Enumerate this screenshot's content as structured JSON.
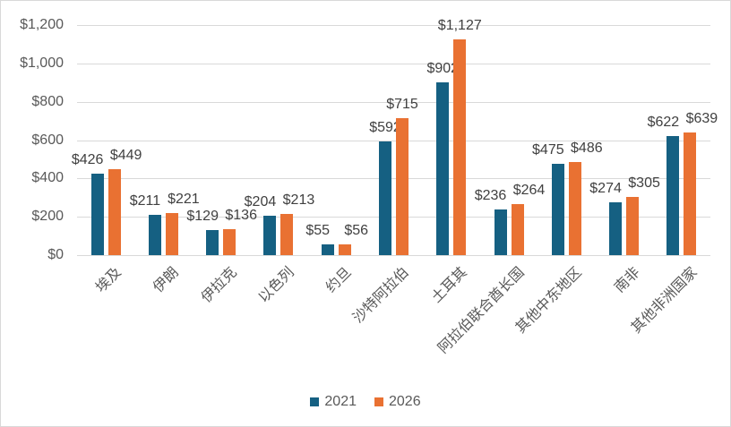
{
  "chart_data": {
    "type": "bar",
    "title": "",
    "categories": [
      "埃及",
      "伊朗",
      "伊拉克",
      "以色列",
      "约旦",
      "沙特阿拉伯",
      "土耳其",
      "阿拉伯联合酋长国",
      "其他中东地区",
      "南非",
      "其他非洲国家"
    ],
    "series": [
      {
        "name": "2021",
        "color": "#156082",
        "values": [
          426,
          211,
          129,
          204,
          55,
          592,
          902,
          236,
          475,
          274,
          622
        ],
        "labels": [
          "$426",
          "$211",
          "$129",
          "$204",
          "$55",
          "$592",
          "$902",
          "$236",
          "$475",
          "$274",
          "$622"
        ]
      },
      {
        "name": "2026",
        "color": "#E97132",
        "values": [
          449,
          221,
          136,
          213,
          56,
          715,
          1127,
          264,
          486,
          305,
          639
        ],
        "labels": [
          "$449",
          "$221",
          "$136",
          "$213",
          "$56",
          "$715",
          "$1,127",
          "$264",
          "$486",
          "$305",
          "$639"
        ]
      }
    ],
    "y_axis": {
      "min": 0,
      "max": 1200,
      "tick_step": 200,
      "tick_labels": [
        "$0",
        "$200",
        "$400",
        "$600",
        "$800",
        "$1,000",
        "$1,200"
      ]
    },
    "x_axis": {
      "label_rotation_deg": -45
    },
    "legend": {
      "position": "bottom",
      "entries": [
        "2021",
        "2026"
      ]
    },
    "grid": true,
    "colors": {
      "gridline": "#d9d9d9",
      "axis_text": "#595959",
      "data_label_text": "#404040",
      "background": "#ffffff",
      "border": "#d9d9d9"
    }
  }
}
